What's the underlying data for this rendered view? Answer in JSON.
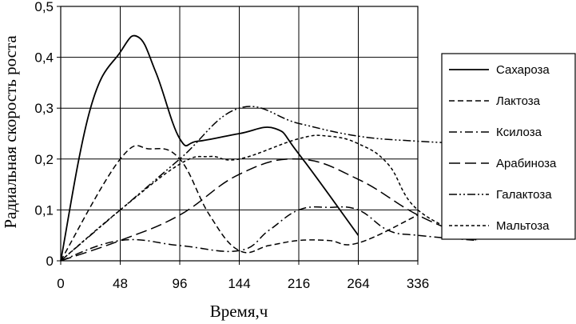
{
  "chart_data": {
    "type": "line",
    "xlabel": "Время,ч",
    "ylabel": "Радиальная скорость роста",
    "ylim": [
      0,
      0.5
    ],
    "y_ticks": [
      "0",
      "0,1",
      "0,2",
      "0,3",
      "0,4",
      "0,5"
    ],
    "categories": [
      "0",
      "48",
      "96",
      "144",
      "216",
      "264",
      "336"
    ],
    "grid": true,
    "legend_position": "right",
    "series": [
      {
        "name": "Сахароза",
        "dash": "solid",
        "points": [
          [
            0,
            0
          ],
          [
            0.5,
            0.3
          ],
          [
            1,
            0.41
          ],
          [
            1.3,
            0.44
          ],
          [
            1.6,
            0.37
          ],
          [
            2,
            0.24
          ],
          [
            2.3,
            0.235
          ],
          [
            3,
            0.25
          ],
          [
            3.6,
            0.26
          ],
          [
            4,
            0.21
          ],
          [
            5,
            0.05
          ]
        ]
      },
      {
        "name": "Лактоза",
        "dash": "dashed",
        "points": [
          [
            0,
            0
          ],
          [
            1,
            0.2
          ],
          [
            1.5,
            0.22
          ],
          [
            2,
            0.2
          ],
          [
            2.5,
            0.09
          ],
          [
            3,
            0.02
          ],
          [
            3.5,
            0.03
          ],
          [
            4,
            0.04
          ],
          [
            4.5,
            0.04
          ],
          [
            5,
            0.035
          ],
          [
            6,
            0.09
          ]
        ]
      },
      {
        "name": "Ксилоза",
        "dash": "dashdot",
        "points": [
          [
            0,
            0
          ],
          [
            1,
            0.04
          ],
          [
            2,
            0.03
          ],
          [
            3,
            0.02
          ],
          [
            3.5,
            0.06
          ],
          [
            4,
            0.1
          ],
          [
            4.5,
            0.105
          ],
          [
            5,
            0.1
          ],
          [
            5.5,
            0.06
          ],
          [
            6,
            0.05
          ],
          [
            7,
            0.04
          ]
        ]
      },
      {
        "name": "Арабиноза",
        "dash": "longdash",
        "points": [
          [
            0,
            0
          ],
          [
            1,
            0.04
          ],
          [
            2,
            0.09
          ],
          [
            3,
            0.17
          ],
          [
            4,
            0.2
          ],
          [
            5,
            0.16
          ],
          [
            6,
            0.09
          ],
          [
            7,
            0.04
          ]
        ]
      },
      {
        "name": "Галактоза",
        "dash": "dashdotdot",
        "points": [
          [
            0,
            0
          ],
          [
            1,
            0.1
          ],
          [
            2,
            0.2
          ],
          [
            3,
            0.3
          ],
          [
            4,
            0.27
          ],
          [
            5,
            0.245
          ],
          [
            6,
            0.235
          ],
          [
            7,
            0.23
          ]
        ]
      },
      {
        "name": "Мальтоза",
        "dash": "shortdash",
        "points": [
          [
            0,
            0
          ],
          [
            1,
            0.1
          ],
          [
            2,
            0.19
          ],
          [
            2.5,
            0.205
          ],
          [
            3,
            0.2
          ],
          [
            4,
            0.24
          ],
          [
            4.5,
            0.245
          ],
          [
            5,
            0.23
          ],
          [
            5.5,
            0.19
          ],
          [
            6,
            0.1
          ],
          [
            7,
            0.04
          ]
        ]
      }
    ]
  }
}
